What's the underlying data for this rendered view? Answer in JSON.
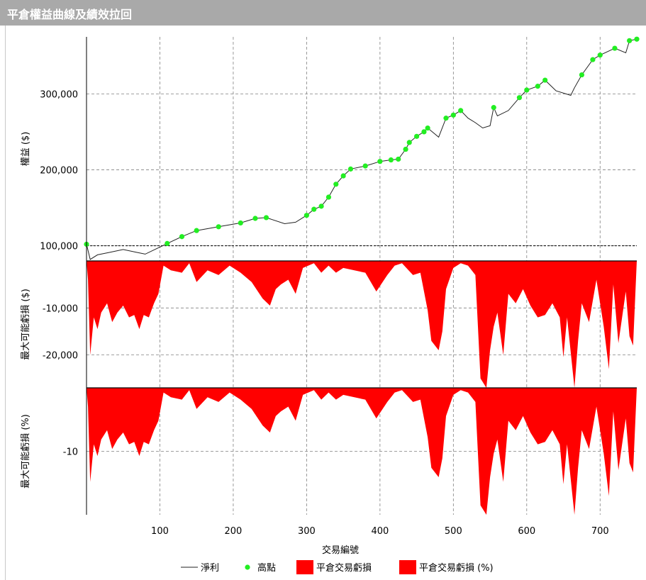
{
  "window": {
    "title": "平倉權益曲線及績效拉回"
  },
  "colors": {
    "title_bar": "#a9a9a9",
    "equity_line": "#222222",
    "high_points": "#22ee22",
    "drawdown_fill": "#ff0000",
    "grid": "#808080"
  },
  "chart_data": {
    "type": "line",
    "xlabel": "交易編號",
    "x_ticks": [
      "100",
      "200",
      "300",
      "400",
      "500",
      "600",
      "700"
    ],
    "xlim": [
      0,
      750
    ],
    "grid": true,
    "legend_position": "bottom",
    "legend": [
      {
        "label": "淨利",
        "marker": "line"
      },
      {
        "label": "高點",
        "marker": "dot"
      },
      {
        "label": "平倉交易虧損",
        "marker": "box"
      },
      {
        "label": "平倉交易虧損 (%)",
        "marker": "box"
      }
    ],
    "panels": [
      {
        "name": "equity",
        "ylabel": "權益 ($)",
        "y_ticks": [
          "100,000",
          "200,000",
          "300,000"
        ],
        "ylim": [
          80000,
          375000
        ],
        "baseline": 100000,
        "series": [
          {
            "name": "淨利",
            "x": [
              0,
              5,
              15,
              30,
              50,
              70,
              80,
              95,
              110,
              130,
              150,
              180,
              210,
              230,
              245,
              270,
              285,
              300,
              310,
              320,
              330,
              340,
              350,
              360,
              380,
              400,
              415,
              425,
              435,
              440,
              450,
              460,
              465,
              480,
              490,
              500,
              510,
              520,
              530,
              540,
              550,
              555,
              560,
              575,
              590,
              600,
              615,
              625,
              640,
              660,
              665,
              675,
              690,
              700,
              720,
              735,
              740,
              750
            ],
            "y": [
              102000,
              82000,
              88000,
              91000,
              95000,
              91000,
              89000,
              96000,
              103000,
              112000,
              120000,
              125000,
              130000,
              136000,
              137000,
              129000,
              131000,
              140000,
              148000,
              152000,
              164000,
              181000,
              192000,
              201000,
              205000,
              211000,
              213000,
              214000,
              227000,
              236000,
              244000,
              250000,
              255000,
              243000,
              268000,
              272000,
              278000,
              268000,
              262000,
              255000,
              258000,
              282000,
              271000,
              278000,
              295000,
              305000,
              310000,
              318000,
              304000,
              298000,
              308000,
              325000,
              345000,
              351000,
              360000,
              354000,
              370000,
              372000
            ]
          }
        ]
      },
      {
        "name": "drawdown_dollar",
        "ylabel": "最大可能虧損 ($)",
        "y_ticks": [
          "-10,000",
          "-20,000"
        ],
        "ylim": [
          -27000,
          0
        ],
        "series": [
          {
            "name": "平倉交易虧損",
            "x": [
              0,
              2,
              5,
              10,
              15,
              20,
              28,
              35,
              42,
              50,
              58,
              65,
              72,
              78,
              85,
              92,
              98,
              105,
              115,
              130,
              140,
              150,
              165,
              180,
              195,
              210,
              225,
              240,
              250,
              258,
              265,
              275,
              285,
              295,
              310,
              320,
              330,
              340,
              350,
              365,
              380,
              395,
              410,
              420,
              430,
              445,
              455,
              465,
              470,
              480,
              485,
              490,
              500,
              510,
              520,
              530,
              537,
              545,
              550,
              555,
              560,
              568,
              575,
              585,
              595,
              605,
              615,
              625,
              635,
              645,
              650,
              655,
              665,
              670,
              675,
              685,
              695,
              705,
              712,
              718,
              725,
              735,
              740,
              745,
              750
            ],
            "y": [
              0,
              -4000,
              -20000,
              -12000,
              -14500,
              -11000,
              -9000,
              -13000,
              -11000,
              -9500,
              -12000,
              -11500,
              -14500,
              -11500,
              -12000,
              -9000,
              -7000,
              -1000,
              -2000,
              -2500,
              -500,
              -4500,
              -2000,
              -3000,
              -1000,
              -2500,
              -4500,
              -8000,
              -9500,
              -6000,
              -5000,
              -4000,
              -7000,
              -1500,
              -500,
              -2500,
              -1000,
              -2500,
              -1500,
              -2000,
              -2500,
              -6500,
              -3000,
              -1000,
              -500,
              -3000,
              -2500,
              -10500,
              -17000,
              -19000,
              -15000,
              -6000,
              -1500,
              -500,
              -1000,
              -3000,
              -25000,
              -27000,
              -19000,
              -14000,
              -11000,
              -20000,
              -7000,
              -9000,
              -6000,
              -9500,
              -12000,
              -11500,
              -9000,
              -12000,
              -20500,
              -12000,
              -27000,
              -17000,
              -9000,
              -13000,
              -4000,
              -14000,
              -23000,
              -5000,
              -17500,
              -6500,
              -16000,
              -18000,
              0
            ]
          }
        ]
      },
      {
        "name": "drawdown_percent",
        "ylabel": "最大可能虧損 (%)",
        "y_ticks": [
          "-10"
        ],
        "ylim": [
          -20,
          0
        ],
        "series": [
          {
            "name": "平倉交易虧損 (%)",
            "x": [
              0,
              2,
              5,
              10,
              15,
              20,
              28,
              35,
              42,
              50,
              58,
              65,
              72,
              78,
              85,
              92,
              98,
              105,
              115,
              130,
              140,
              150,
              165,
              180,
              195,
              210,
              225,
              240,
              250,
              258,
              265,
              275,
              285,
              295,
              310,
              320,
              330,
              340,
              350,
              365,
              380,
              395,
              410,
              420,
              430,
              445,
              455,
              465,
              470,
              480,
              485,
              490,
              500,
              510,
              520,
              530,
              537,
              545,
              550,
              555,
              560,
              568,
              575,
              585,
              595,
              605,
              615,
              625,
              635,
              645,
              650,
              655,
              665,
              670,
              675,
              685,
              695,
              705,
              712,
              718,
              725,
              735,
              740,
              745,
              750
            ],
            "y": [
              0,
              -4000,
              -20000,
              -12000,
              -14500,
              -11000,
              -9000,
              -13000,
              -11000,
              -9500,
              -12000,
              -11500,
              -14500,
              -11500,
              -12000,
              -9000,
              -7000,
              -1000,
              -2000,
              -2500,
              -500,
              -4500,
              -2000,
              -3000,
              -1000,
              -2500,
              -4500,
              -8000,
              -9500,
              -6000,
              -5000,
              -4000,
              -7000,
              -1500,
              -500,
              -2500,
              -1000,
              -2500,
              -1500,
              -2000,
              -2500,
              -6500,
              -3000,
              -1000,
              -500,
              -3000,
              -2500,
              -10500,
              -17000,
              -19000,
              -15000,
              -6000,
              -1500,
              -500,
              -1000,
              -3000,
              -25000,
              -27000,
              -19000,
              -14000,
              -11000,
              -20000,
              -7000,
              -9000,
              -6000,
              -9500,
              -12000,
              -11500,
              -9000,
              -12000,
              -20500,
              -12000,
              -27000,
              -17000,
              -9000,
              -13000,
              -4000,
              -14000,
              -23000,
              -5000,
              -17500,
              -6500,
              -16000,
              -18000,
              0
            ]
          }
        ]
      }
    ]
  }
}
